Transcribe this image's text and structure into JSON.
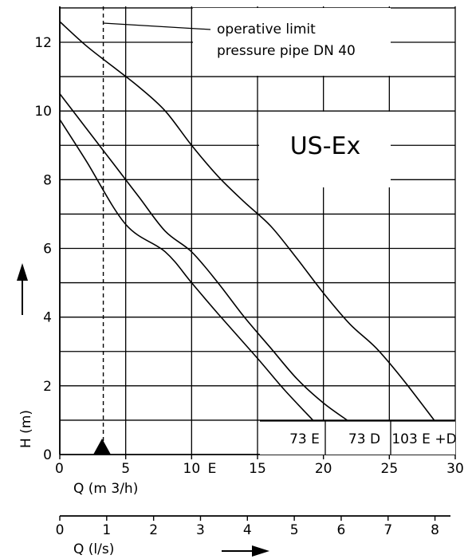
{
  "chart_data": {
    "type": "line",
    "title": "US-Ex",
    "ylabel": "H (m)",
    "xlabel": "Q (m 3/h)",
    "x2label": "Q (l/s)",
    "xlim": [
      0,
      30
    ],
    "ylim": [
      0,
      13
    ],
    "x2lim": [
      0,
      8.33
    ],
    "xticks": [
      0,
      5,
      10,
      15,
      20,
      25,
      30
    ],
    "yticks": [
      0,
      2,
      4,
      6,
      8,
      10,
      12
    ],
    "x2ticks": [
      0,
      1,
      2,
      3,
      4,
      5,
      6,
      7,
      8
    ],
    "grid": true,
    "extra_label": "E",
    "series": [
      {
        "name": "73 E",
        "x": [
          0,
          2,
          5,
          8,
          10,
          12,
          15,
          17,
          19.2
        ],
        "y": [
          9.75,
          8.55,
          6.7,
          5.9,
          5.0,
          4.1,
          2.8,
          1.9,
          1.0
        ]
      },
      {
        "name": "73 D",
        "x": [
          0,
          2,
          4,
          6,
          8,
          10,
          12,
          14,
          16,
          18,
          20,
          21.8
        ],
        "y": [
          10.5,
          9.5,
          8.5,
          7.5,
          6.5,
          5.9,
          5.0,
          4.0,
          3.1,
          2.2,
          1.5,
          1.0
        ]
      },
      {
        "name": "103 E +D",
        "x": [
          0,
          2,
          4,
          6,
          8,
          10,
          12,
          14,
          16,
          18,
          20,
          22,
          24,
          26,
          28.4
        ],
        "y": [
          12.6,
          11.9,
          11.3,
          10.7,
          10.0,
          9.0,
          8.1,
          7.35,
          6.65,
          5.7,
          4.7,
          3.8,
          3.1,
          2.2,
          1.0
        ]
      }
    ],
    "limit_line": {
      "x": 3.3,
      "label_line1": "operative limit",
      "label_line2": "pressure pipe DN 40"
    }
  }
}
